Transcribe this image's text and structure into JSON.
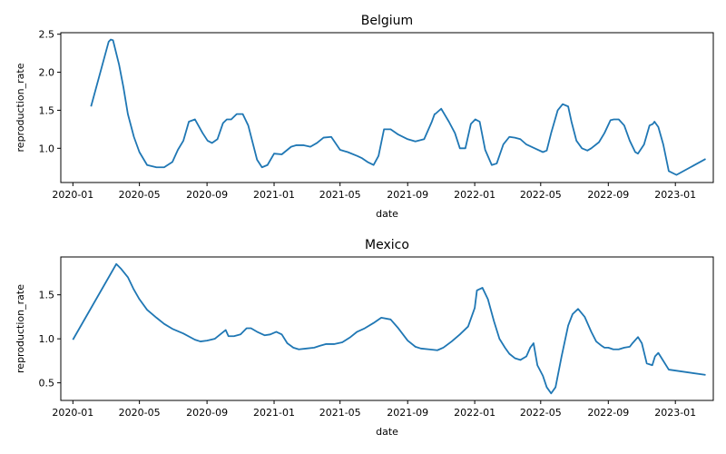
{
  "chart_data": [
    {
      "type": "line",
      "title": "Belgium",
      "xlabel": "date",
      "ylabel": "reproduction_rate",
      "x_ticks": [
        "2020-01",
        "2020-05",
        "2020-09",
        "2021-01",
        "2021-05",
        "2021-09",
        "2022-01",
        "2022-05",
        "2022-09",
        "2023-01"
      ],
      "y_ticks": [
        "1.0",
        "1.5",
        "2.0",
        "2.5"
      ],
      "ylim": [
        0.55,
        2.52
      ],
      "xlim": [
        "2019-12-10",
        "2023-03-11"
      ],
      "grid": false,
      "color": "#1f77b4",
      "series": [
        {
          "x": [
            "2020-02-03",
            "2020-03-06",
            "2020-03-10",
            "2020-03-14",
            "2020-03-25",
            "2020-04-02",
            "2020-04-10",
            "2020-04-21",
            "2020-05-01",
            "2020-05-15",
            "2020-06-01",
            "2020-06-15",
            "2020-06-30",
            "2020-07-10",
            "2020-07-20",
            "2020-07-30",
            "2020-08-10",
            "2020-08-24",
            "2020-09-02",
            "2020-09-10",
            "2020-09-20",
            "2020-09-30",
            "2020-10-07",
            "2020-10-15",
            "2020-10-25",
            "2020-11-05",
            "2020-11-15",
            "2020-12-01",
            "2020-12-10",
            "2020-12-20",
            "2021-01-01",
            "2021-01-15",
            "2021-02-01",
            "2021-02-10",
            "2021-02-24",
            "2021-03-08",
            "2021-03-20",
            "2021-04-01",
            "2021-04-15",
            "2021-05-01",
            "2021-05-15",
            "2021-06-01",
            "2021-06-10",
            "2021-06-20",
            "2021-07-01",
            "2021-07-10",
            "2021-07-20",
            "2021-08-01",
            "2021-08-15",
            "2021-09-01",
            "2021-09-15",
            "2021-10-01",
            "2021-10-15",
            "2021-10-20",
            "2021-10-21",
            "2021-11-01",
            "2021-11-15",
            "2021-11-26",
            "2021-12-05",
            "2021-12-15",
            "2021-12-25",
            "2022-01-02",
            "2022-01-10",
            "2022-01-20",
            "2022-02-01",
            "2022-02-10",
            "2022-02-22",
            "2022-03-05",
            "2022-03-15",
            "2022-03-25",
            "2022-04-05",
            "2022-04-20",
            "2022-05-05",
            "2022-05-12",
            "2022-05-20",
            "2022-06-01",
            "2022-06-10",
            "2022-06-20",
            "2022-06-26",
            "2022-07-05",
            "2022-07-15",
            "2022-07-25",
            "2022-08-01",
            "2022-08-15",
            "2022-08-25",
            "2022-09-05",
            "2022-09-11",
            "2022-09-20",
            "2022-09-30",
            "2022-10-10",
            "2022-10-20",
            "2022-10-25",
            "2022-11-05",
            "2022-11-15",
            "2022-11-21",
            "2022-11-24",
            "2022-12-01",
            "2022-12-10",
            "2022-12-20",
            "2023-01-03",
            "2023-02-25"
          ],
          "y": [
            1.55,
            2.4,
            2.43,
            2.42,
            2.1,
            1.8,
            1.45,
            1.15,
            0.95,
            0.78,
            0.75,
            0.75,
            0.82,
            0.98,
            1.1,
            1.35,
            1.38,
            1.2,
            1.1,
            1.07,
            1.12,
            1.33,
            1.38,
            1.38,
            1.45,
            1.45,
            1.3,
            0.85,
            0.75,
            0.78,
            0.93,
            0.92,
            1.02,
            1.04,
            1.04,
            1.02,
            1.07,
            1.14,
            1.15,
            0.98,
            0.95,
            0.9,
            0.87,
            0.82,
            0.78,
            0.9,
            1.25,
            1.25,
            1.18,
            1.12,
            1.09,
            1.12,
            1.35,
            1.45,
            1.45,
            1.52,
            1.35,
            1.2,
            1.0,
            1.0,
            1.32,
            1.38,
            1.35,
            0.98,
            0.78,
            0.8,
            1.05,
            1.15,
            1.14,
            1.12,
            1.05,
            1.0,
            0.95,
            0.97,
            1.2,
            1.5,
            1.58,
            1.55,
            1.35,
            1.1,
            1.0,
            0.97,
            1.0,
            1.08,
            1.2,
            1.37,
            1.38,
            1.38,
            1.3,
            1.1,
            0.95,
            0.93,
            1.05,
            1.3,
            1.32,
            1.35,
            1.28,
            1.05,
            0.7,
            0.65,
            0.86
          ]
        }
      ]
    },
    {
      "type": "line",
      "title": "Mexico",
      "xlabel": "date",
      "ylabel": "reproduction_rate",
      "x_ticks": [
        "2020-01",
        "2020-05",
        "2020-09",
        "2021-01",
        "2021-05",
        "2021-09",
        "2022-01",
        "2022-05",
        "2022-09",
        "2023-01"
      ],
      "y_ticks": [
        "0.5",
        "1.0",
        "1.5"
      ],
      "ylim": [
        0.3,
        1.93
      ],
      "xlim": [
        "2019-12-10",
        "2023-03-11"
      ],
      "grid": false,
      "color": "#1f77b4",
      "series": [
        {
          "x": [
            "2020-01-01",
            "2020-03-20",
            "2020-03-28",
            "2020-04-10",
            "2020-04-20",
            "2020-05-01",
            "2020-05-15",
            "2020-06-01",
            "2020-06-15",
            "2020-07-01",
            "2020-07-20",
            "2020-08-10",
            "2020-08-20",
            "2020-09-01",
            "2020-09-15",
            "2020-09-25",
            "2020-10-05",
            "2020-10-10",
            "2020-10-20",
            "2020-11-01",
            "2020-11-12",
            "2020-11-20",
            "2020-12-01",
            "2020-12-15",
            "2020-12-25",
            "2021-01-05",
            "2021-01-15",
            "2021-01-25",
            "2021-02-05",
            "2021-02-15",
            "2021-03-01",
            "2021-03-15",
            "2021-03-25",
            "2021-04-05",
            "2021-04-20",
            "2021-05-05",
            "2021-05-20",
            "2021-06-01",
            "2021-06-15",
            "2021-07-01",
            "2021-07-15",
            "2021-08-01",
            "2021-08-15",
            "2021-09-01",
            "2021-09-15",
            "2021-09-25",
            "2021-10-10",
            "2021-10-25",
            "2021-11-05",
            "2021-11-20",
            "2021-12-05",
            "2021-12-20",
            "2022-01-01",
            "2022-01-05",
            "2022-01-15",
            "2022-01-25",
            "2022-02-05",
            "2022-02-15",
            "2022-02-25",
            "2022-03-05",
            "2022-03-15",
            "2022-03-25",
            "2022-04-05",
            "2022-04-12",
            "2022-04-18",
            "2022-04-25",
            "2022-05-05",
            "2022-05-12",
            "2022-05-20",
            "2022-05-28",
            "2022-06-08",
            "2022-06-20",
            "2022-06-28",
            "2022-07-08",
            "2022-07-20",
            "2022-08-01",
            "2022-08-10",
            "2022-08-20",
            "2022-08-25",
            "2022-09-01",
            "2022-09-10",
            "2022-09-20",
            "2022-09-30",
            "2022-10-10",
            "2022-10-15",
            "2022-10-25",
            "2022-11-01",
            "2022-11-10",
            "2022-11-20",
            "2022-11-25",
            "2022-12-01",
            "2022-12-10",
            "2022-12-20",
            "2023-02-25"
          ],
          "y": [
            0.99,
            1.85,
            1.8,
            1.7,
            1.57,
            1.45,
            1.33,
            1.24,
            1.17,
            1.11,
            1.06,
            0.99,
            0.97,
            0.98,
            1.0,
            1.05,
            1.1,
            1.03,
            1.03,
            1.05,
            1.12,
            1.12,
            1.08,
            1.04,
            1.05,
            1.08,
            1.05,
            0.95,
            0.9,
            0.88,
            0.89,
            0.9,
            0.92,
            0.94,
            0.94,
            0.96,
            1.02,
            1.08,
            1.12,
            1.18,
            1.24,
            1.22,
            1.12,
            0.98,
            0.91,
            0.89,
            0.88,
            0.87,
            0.9,
            0.97,
            1.05,
            1.14,
            1.35,
            1.55,
            1.58,
            1.45,
            1.2,
            1.0,
            0.9,
            0.83,
            0.78,
            0.76,
            0.8,
            0.9,
            0.95,
            0.7,
            0.58,
            0.45,
            0.38,
            0.45,
            0.8,
            1.15,
            1.28,
            1.34,
            1.25,
            1.08,
            0.97,
            0.92,
            0.9,
            0.9,
            0.88,
            0.88,
            0.9,
            0.91,
            0.95,
            1.02,
            0.95,
            0.72,
            0.7,
            0.8,
            0.84,
            0.75,
            0.65,
            0.59
          ]
        }
      ]
    }
  ]
}
